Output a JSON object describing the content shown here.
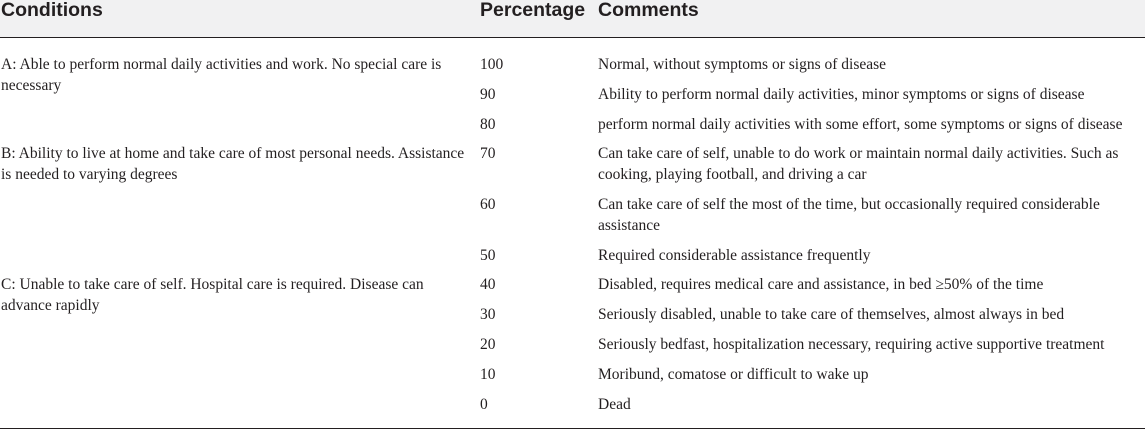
{
  "table": {
    "headers": {
      "conditions": "Conditions",
      "percentage": "Percentage",
      "comments": "Comments"
    },
    "groups": [
      {
        "condition": "A: Able to perform normal daily activities and work. No special care is necessary"
      },
      {
        "condition": "B: Ability to live at home and take care of most personal needs. Assistance is needed to varying degrees"
      },
      {
        "condition": "C: Unable to take care of self. Hospital care is required. Disease can advance rapidly"
      }
    ],
    "rows": [
      {
        "percentage": "100",
        "comment": "Normal, without symptoms or signs of disease"
      },
      {
        "percentage": "90",
        "comment": "Ability to perform normal daily activities, minor symptoms or signs of disease"
      },
      {
        "percentage": "80",
        "comment": "perform normal daily activities with some effort, some symptoms or signs of disease"
      },
      {
        "percentage": "70",
        "comment": "Can take care of self, unable to do work or maintain normal daily activities. Such as cooking, playing football, and driving a car"
      },
      {
        "percentage": "60",
        "comment": "Can take care of self the most of the time, but occasionally required considerable assistance"
      },
      {
        "percentage": "50",
        "comment": "Required considerable assistance frequently"
      },
      {
        "percentage": "40",
        "comment": "Disabled, requires medical care and assistance, in bed ≥50% of the time"
      },
      {
        "percentage": "30",
        "comment": "Seriously disabled, unable to take care of themselves, almost always in bed"
      },
      {
        "percentage": "20",
        "comment": "Seriously bedfast, hospitalization necessary, requiring active supportive treatment"
      },
      {
        "percentage": "10",
        "comment": "Moribund, comatose or difficult to wake up"
      },
      {
        "percentage": "0",
        "comment": "Dead"
      }
    ]
  }
}
